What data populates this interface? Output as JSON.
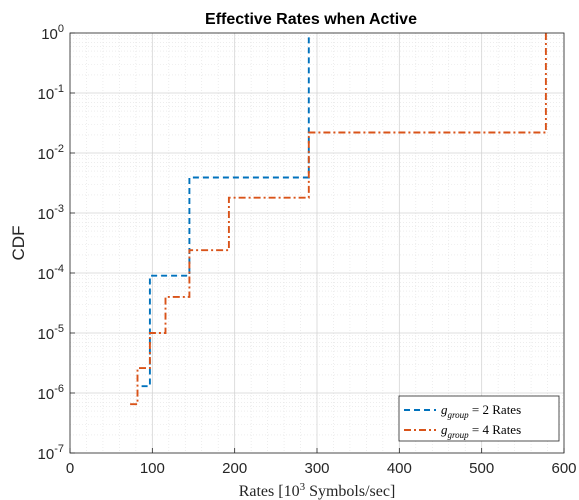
{
  "chart_data": {
    "type": "line",
    "title": "Effective Rates when Active",
    "xlabel": "Rates [10^3 Symbols/sec]",
    "xlabel_parts": {
      "pre": "Rates [10",
      "sup": "3",
      "post": " Symbols/sec]"
    },
    "ylabel": "CDF",
    "xlim": [
      0,
      600
    ],
    "ylim": [
      1e-07,
      1
    ],
    "yscale": "log",
    "grid": true,
    "minor_grid": true,
    "xticks": [
      0,
      100,
      200,
      300,
      400,
      500,
      600
    ],
    "yticks": [
      {
        "value": 1e-07,
        "base": "10",
        "exp": "-7"
      },
      {
        "value": 1e-06,
        "base": "10",
        "exp": "-6"
      },
      {
        "value": 1e-05,
        "base": "10",
        "exp": "-5"
      },
      {
        "value": 0.0001,
        "base": "10",
        "exp": "-4"
      },
      {
        "value": 0.001,
        "base": "10",
        "exp": "-3"
      },
      {
        "value": 0.01,
        "base": "10",
        "exp": "-2"
      },
      {
        "value": 0.1,
        "base": "10",
        "exp": "-1"
      },
      {
        "value": 1,
        "base": "10",
        "exp": "0"
      }
    ],
    "legend_position": "bottom-right",
    "series": [
      {
        "name": "g_group = 2 Rates",
        "legend": {
          "var": "g",
          "sub": "group",
          "rest": " = 2 Rates"
        },
        "color": "#0072BD",
        "dash": "dashed",
        "x": [
          87,
          87,
          97,
          97,
          145,
          145,
          290,
          290
        ],
        "y": [
          1.3e-06,
          1.3e-06,
          1.3e-06,
          9e-05,
          9e-05,
          0.0039,
          0.0039,
          1
        ]
      },
      {
        "name": "g_group = 4 Rates",
        "legend": {
          "var": "g",
          "sub": "group",
          "rest": " = 4 Rates"
        },
        "color": "#D95319",
        "dash": "dashdot",
        "x": [
          73,
          82,
          82,
          97,
          97,
          116,
          116,
          145,
          145,
          193,
          193,
          290,
          290,
          578,
          578
        ],
        "y": [
          6.5e-07,
          6.5e-07,
          2.6e-06,
          2.6e-06,
          1e-05,
          1e-05,
          4e-05,
          4e-05,
          0.00024,
          0.00024,
          0.0018,
          0.0018,
          0.022,
          0.022,
          1
        ]
      }
    ]
  }
}
